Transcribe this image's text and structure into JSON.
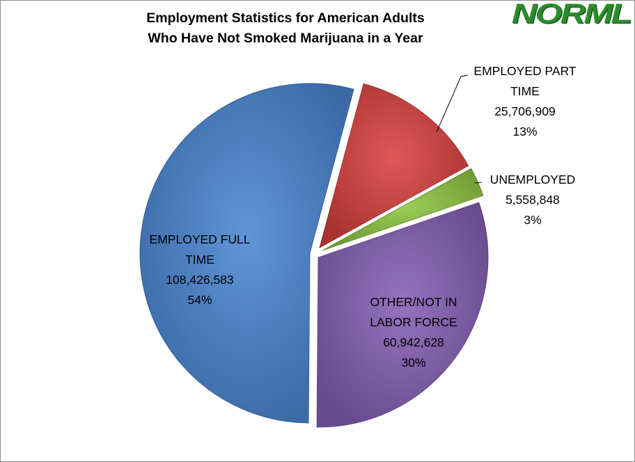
{
  "chart_data": {
    "type": "pie",
    "title_lines": [
      "Employment Statistics for American Adults",
      "Who Have Not Smoked Marijuana in a Year"
    ],
    "slices": [
      {
        "key": "part_time",
        "label_lines": [
          "EMPLOYED PART",
          "TIME"
        ],
        "value_text": "25,706,909",
        "value": 25706909,
        "percent_text": "13%",
        "color": "#d9413f"
      },
      {
        "key": "unemployed",
        "label_lines": [
          "UNEMPLOYED"
        ],
        "value_text": "5,558,848",
        "value": 5558848,
        "percent_text": "3%",
        "color": "#8ec641"
      },
      {
        "key": "other",
        "label_lines": [
          "OTHER/NOT IN",
          "LABOR FORCE"
        ],
        "value_text": "60,942,628",
        "value": 60942628,
        "percent_text": "30%",
        "color": "#8660b6"
      },
      {
        "key": "full_time",
        "label_lines": [
          "EMPLOYED FULL",
          "TIME"
        ],
        "value_text": "108,426,583",
        "value": 108426583,
        "percent_text": "54%",
        "color": "#4a86d4"
      }
    ],
    "start_angle_deg": 15
  },
  "logo": {
    "text": "NORML",
    "color": "#2b8c2b"
  }
}
